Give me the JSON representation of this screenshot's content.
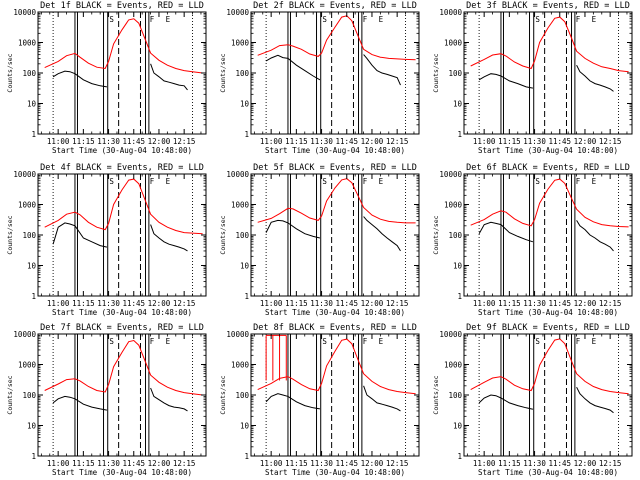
{
  "chart_data": {
    "type": "line",
    "shared": {
      "x_ticks": [
        "11:00",
        "11:15",
        "11:30",
        "11:45",
        "12:00",
        "12:15"
      ],
      "x_tick_minutes": [
        0,
        15,
        30,
        45,
        60,
        75
      ],
      "xlim_minutes": [
        -12,
        88
      ],
      "xlabel": "Start Time (30-Aug-04 10:48:00)",
      "ylabel": "Counts/sec",
      "y_ticks": [
        "1",
        "10",
        "100",
        "1000",
        "10000"
      ],
      "ylim": [
        1,
        10000
      ],
      "yscale": "log",
      "markers": {
        "dotted": [
          -3,
          80
        ],
        "solid": [
          10,
          11.5,
          27,
          29.5,
          52,
          54
        ],
        "dashed": [
          36,
          49
        ],
        "letters": [
          {
            "text": "S",
            "x": 30.5
          },
          {
            "text": "F",
            "x": 54.5
          },
          {
            "text": "E",
            "x": 64
          }
        ]
      },
      "red_x": [
        -8,
        0,
        5,
        10,
        13,
        18,
        23,
        28,
        30,
        33,
        38,
        42,
        45,
        48,
        52,
        55,
        60,
        65,
        70,
        75,
        80,
        86
      ],
      "black_x": [
        -3,
        0,
        4,
        7,
        10,
        15,
        20,
        25,
        29,
        null,
        55,
        57,
        60,
        63,
        66,
        69,
        72,
        75,
        77
      ]
    },
    "panels": [
      {
        "title": "Det 1f BLACK = Events, RED = LLD",
        "series": [
          {
            "name": "Events",
            "color": "#000000",
            "y": [
              75,
              95,
              115,
              110,
              95,
              60,
              45,
              38,
              35,
              null,
              200,
              100,
              75,
              55,
              50,
              45,
              40,
              38,
              28
            ]
          },
          {
            "name": "LLD",
            "color": "#ff0000",
            "y": [
              150,
              240,
              370,
              440,
              330,
              210,
              155,
              140,
              240,
              900,
              2600,
              5500,
              6000,
              4300,
              1200,
              450,
              260,
              180,
              140,
              120,
              110,
              100
            ]
          }
        ]
      },
      {
        "title": "Det 2f BLACK = Events, RED = LLD",
        "series": [
          {
            "name": "Events",
            "color": "#000000",
            "y": [
              250,
              310,
              380,
              320,
              300,
              180,
              120,
              80,
              60,
              null,
              400,
              300,
              180,
              120,
              100,
              90,
              80,
              70,
              40
            ]
          },
          {
            "name": "LLD",
            "color": "#ff0000",
            "y": [
              380,
              560,
              790,
              850,
              760,
              600,
              420,
              350,
              450,
              1200,
              3200,
              6800,
              7500,
              5200,
              1500,
              600,
              400,
              330,
              300,
              290,
              280,
              270
            ]
          }
        ]
      },
      {
        "title": "Det 3f BLACK = Events, RED = LLD",
        "series": [
          {
            "name": "Events",
            "color": "#000000",
            "y": [
              60,
              75,
              95,
              90,
              80,
              55,
              45,
              35,
              32,
              null,
              180,
              110,
              80,
              55,
              45,
              40,
              35,
              30,
              25
            ]
          },
          {
            "name": "LLD",
            "color": "#ff0000",
            "y": [
              170,
              280,
              390,
              430,
              360,
              230,
              170,
              140,
              250,
              1000,
              3000,
              6200,
              6800,
              4800,
              1400,
              520,
              300,
              210,
              160,
              140,
              120,
              110
            ]
          }
        ]
      },
      {
        "title": "Det 4f BLACK = Events, RED = LLD",
        "series": [
          {
            "name": "Events",
            "color": "#000000",
            "y": [
              50,
              180,
              250,
              230,
              200,
              80,
              60,
              45,
              40,
              null,
              220,
              110,
              80,
              60,
              50,
              45,
              40,
              35,
              30
            ]
          },
          {
            "name": "LLD",
            "color": "#ff0000",
            "y": [
              180,
              300,
              480,
              560,
              460,
              260,
              180,
              150,
              240,
              1000,
              3000,
              6300,
              6800,
              4800,
              1300,
              480,
              260,
              180,
              140,
              120,
              115,
              110
            ]
          }
        ]
      },
      {
        "title": "Det 5f BLACK = Events, RED = LLD",
        "series": [
          {
            "name": "Events",
            "color": "#000000",
            "y": [
              120,
              260,
              300,
              290,
              250,
              160,
              110,
              90,
              80,
              null,
              400,
              300,
              220,
              160,
              110,
              80,
              60,
              45,
              30
            ]
          },
          {
            "name": "LLD",
            "color": "#ff0000",
            "y": [
              260,
              350,
              500,
              750,
              720,
              520,
              360,
              300,
              420,
              1300,
              3500,
              6400,
              7000,
              5200,
              1800,
              800,
              450,
              330,
              280,
              260,
              250,
              250
            ]
          }
        ]
      },
      {
        "title": "Det 6f BLACK = Events, RED = LLD",
        "series": [
          {
            "name": "Events",
            "color": "#000000",
            "y": [
              110,
              220,
              260,
              240,
              220,
              120,
              90,
              70,
              60,
              null,
              300,
              200,
              150,
              100,
              80,
              60,
              50,
              40,
              30
            ]
          },
          {
            "name": "LLD",
            "color": "#ff0000",
            "y": [
              210,
              320,
              480,
              620,
              560,
              340,
              240,
              200,
              320,
              1100,
              3200,
              6200,
              6800,
              4900,
              1600,
              700,
              380,
              270,
              220,
              200,
              190,
              185
            ]
          }
        ]
      },
      {
        "title": "Det 7f BLACK = Events, RED = LLD",
        "series": [
          {
            "name": "Events",
            "color": "#000000",
            "y": [
              55,
              75,
              90,
              85,
              75,
              50,
              40,
              35,
              32,
              null,
              170,
              90,
              70,
              55,
              45,
              40,
              38,
              35,
              30
            ]
          },
          {
            "name": "LLD",
            "color": "#ff0000",
            "y": [
              140,
              230,
              320,
              340,
              290,
              190,
              140,
              125,
              220,
              850,
              2500,
              5600,
              6100,
              4300,
              1200,
              450,
              260,
              180,
              140,
              120,
              110,
              100
            ]
          }
        ]
      },
      {
        "title": "Det 8f BLACK = Events, RED = LLD",
        "series": [
          {
            "name": "Events",
            "color": "#000000",
            "y": [
              60,
              90,
              110,
              100,
              90,
              60,
              45,
              38,
              35,
              null,
              200,
              100,
              75,
              55,
              50,
              45,
              40,
              35,
              30
            ]
          },
          {
            "name": "LLD",
            "color": "#ff0000",
            "y": [
              150,
              240,
              350,
              400,
              330,
              220,
              160,
              140,
              240,
              900,
              2700,
              6200,
              6800,
              4800,
              1300,
              500,
              280,
              190,
              150,
              130,
              120,
              110
            ]
          }
        ],
        "spikes_x": [
          -3,
          1,
          5,
          9
        ],
        "spike_top": 9000
      },
      {
        "title": "Det 9f BLACK = Events, RED = LLD",
        "series": [
          {
            "name": "Events",
            "color": "#000000",
            "y": [
              55,
              80,
              100,
              95,
              80,
              55,
              45,
              38,
              34,
              null,
              180,
              110,
              75,
              55,
              45,
              40,
              36,
              32,
              26
            ]
          },
          {
            "name": "LLD",
            "color": "#ff0000",
            "y": [
              150,
              260,
              360,
              400,
              330,
              210,
              160,
              140,
              240,
              950,
              2900,
              6300,
              6900,
              4800,
              1300,
              500,
              280,
              190,
              150,
              130,
              120,
              110
            ]
          }
        ]
      }
    ]
  }
}
